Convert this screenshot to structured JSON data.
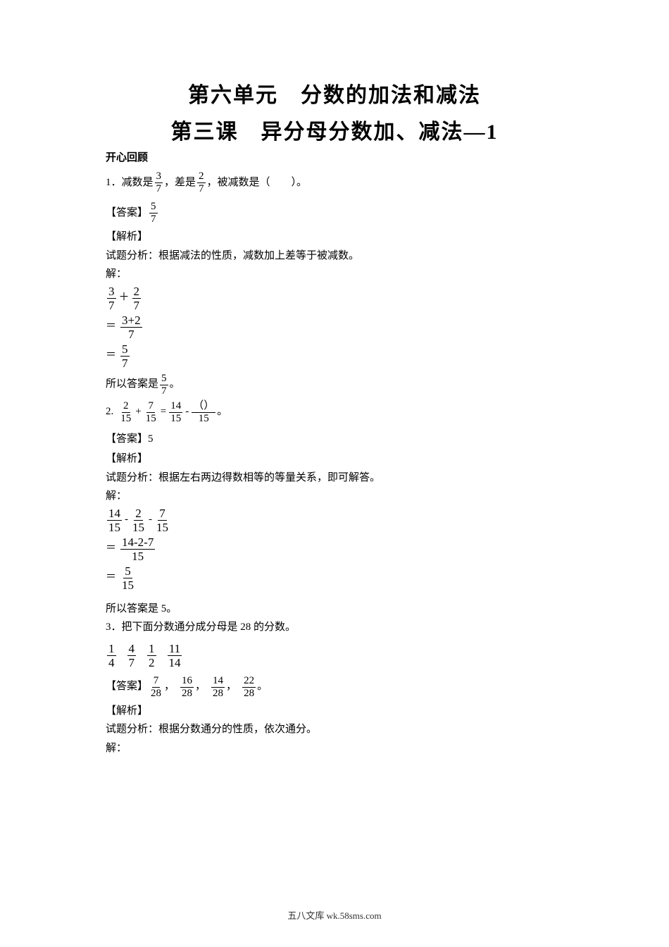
{
  "titles": {
    "unit": "第六单元　分数的加法和减法",
    "lesson": "第三课　异分母分数加、减法—1"
  },
  "section_review": "开心回顾",
  "q1": {
    "prefix": "1．减数是",
    "f1": {
      "num": "3",
      "den": "7"
    },
    "mid1": "，差是",
    "f2": {
      "num": "2",
      "den": "7"
    },
    "suffix": "，被减数是（　　）。",
    "ans_label": "【答案】",
    "ans": {
      "num": "5",
      "den": "7"
    },
    "exp_label": "【解析】",
    "analysis": "试题分析：根据减法的性质，减数加上差等于被减数。",
    "solve_label": "解：",
    "step1_a": {
      "num": "3",
      "den": "7"
    },
    "step1_op": "＋",
    "step1_b": {
      "num": "2",
      "den": "7"
    },
    "step2_eq": "＝",
    "step2": {
      "num": "3+2",
      "den": "7"
    },
    "step3_eq": "＝",
    "step3": {
      "num": "5",
      "den": "7"
    },
    "conclude_pre": "所以答案是",
    "conclude_frac": {
      "num": "5",
      "den": "7"
    },
    "conclude_post": "。"
  },
  "q2": {
    "prefix": "2.",
    "a": {
      "num": "2",
      "den": "15"
    },
    "op1": "+",
    "b": {
      "num": "7",
      "den": "15"
    },
    "eq": "=",
    "c": {
      "num": "14",
      "den": "15"
    },
    "op2": "-",
    "d": {
      "num": "（）",
      "den": "15"
    },
    "period": "。",
    "ans_label": "【答案】",
    "ans": "5",
    "exp_label": "【解析】",
    "analysis": "试题分析：根据左右两边得数相等的等量关系，即可解答。",
    "solve_label": "解：",
    "s1a": {
      "num": "14",
      "den": "15"
    },
    "s1op1": "-",
    "s1b": {
      "num": "2",
      "den": "15"
    },
    "s1op2": "-",
    "s1c": {
      "num": "7",
      "den": "15"
    },
    "s2eq": "＝",
    "s2": {
      "num": "14-2-7",
      "den": "15"
    },
    "s3eq": "＝",
    "s3": {
      "num": "5",
      "den": "15"
    },
    "conclude": "所以答案是 5。"
  },
  "q3": {
    "stem": "3．把下面分数通分成分母是 28 的分数。",
    "f1": {
      "num": "1",
      "den": "4"
    },
    "f2": {
      "num": "4",
      "den": "7"
    },
    "f3": {
      "num": "1",
      "den": "2"
    },
    "f4": {
      "num": "11",
      "den": "14"
    },
    "ans_label": "【答案】",
    "a1": {
      "num": "7",
      "den": "28"
    },
    "a2": {
      "num": "16",
      "den": "28"
    },
    "a3": {
      "num": "14",
      "den": "28"
    },
    "a4": {
      "num": "22",
      "den": "28"
    },
    "sep": "，",
    "end": "。",
    "exp_label": "【解析】",
    "analysis": "试题分析：根据分数通分的性质，依次通分。",
    "solve_label": "解："
  },
  "footer": "五八文库 wk.58sms.com"
}
